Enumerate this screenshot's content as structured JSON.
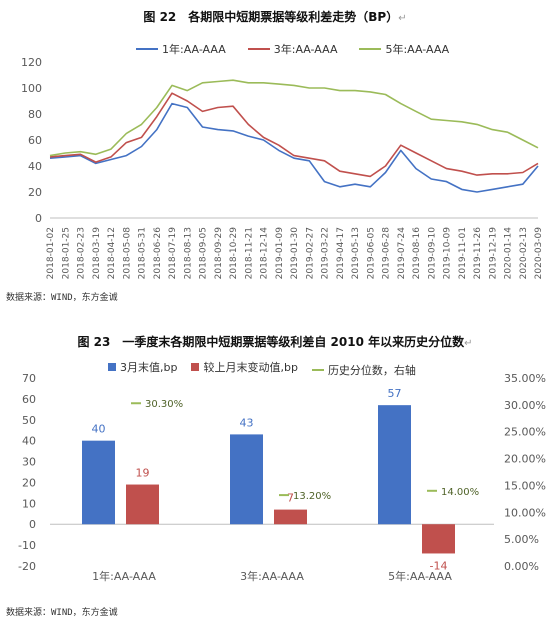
{
  "colors": {
    "series_1y": "#4472C4",
    "series_3y": "#C0504D",
    "series_5y": "#9BBB59",
    "bar_value": "#4472C4",
    "bar_change": "#C0504D",
    "percentile": "#9BBB59",
    "axis_text": "#595959"
  },
  "figure22": {
    "title": "图 22　各期限中短期票据等级利差走势（BP）",
    "source": "数据来源：WIND，东方金诚",
    "chart_data": {
      "type": "line",
      "title": "图 22　各期限中短期票据等级利差走势（BP）",
      "ylim": [
        0,
        120
      ],
      "yticks": [
        0,
        20,
        40,
        60,
        80,
        100,
        120
      ],
      "legend_position": "top",
      "grid": false,
      "x_tick_labels": [
        "2018-01-02",
        "2018-01-25",
        "2018-02-23",
        "2018-03-19",
        "2018-04-12",
        "2018-05-08",
        "2018-05-31",
        "2018-06-26",
        "2018-07-19",
        "2018-08-13",
        "2018-09-05",
        "2018-09-29",
        "2018-10-29",
        "2018-11-21",
        "2018-12-14",
        "2019-01-09",
        "2019-01-30",
        "2019-02-27",
        "2019-03-22",
        "2019-04-17",
        "2019-05-13",
        "2019-06-05",
        "2019-06-28",
        "2019-07-24",
        "2019-08-16",
        "2019-09-10",
        "2019-10-09",
        "2019-11-01",
        "2019-11-26",
        "2019-12-19",
        "2020-01-14",
        "2020-02-13",
        "2020-03-09"
      ],
      "series": [
        {
          "name": "1年:AA-AAA",
          "values": [
            46,
            47,
            48,
            42,
            45,
            48,
            55,
            68,
            88,
            85,
            70,
            68,
            67,
            63,
            60,
            52,
            46,
            44,
            28,
            24,
            26,
            24,
            35,
            52,
            38,
            30,
            28,
            22,
            20,
            22,
            24,
            26,
            40
          ]
        },
        {
          "name": "3年:AA-AAA",
          "values": [
            47,
            48,
            49,
            43,
            47,
            58,
            62,
            78,
            96,
            90,
            82,
            85,
            86,
            72,
            62,
            56,
            48,
            46,
            44,
            36,
            34,
            32,
            40,
            56,
            50,
            44,
            38,
            36,
            33,
            34,
            34,
            35,
            42
          ]
        },
        {
          "name": "5年:AA-AAA",
          "values": [
            48,
            50,
            51,
            49,
            53,
            65,
            72,
            85,
            102,
            98,
            104,
            105,
            106,
            104,
            104,
            103,
            102,
            100,
            100,
            98,
            98,
            97,
            95,
            88,
            82,
            76,
            75,
            74,
            72,
            68,
            66,
            60,
            54
          ]
        }
      ]
    }
  },
  "figure23": {
    "title": "图 23　一季度末各期限中短期票据等级利差自 2010 年以来历史分位数",
    "source": "数据来源：WIND，东方金诚",
    "chart_data": {
      "type": "bar",
      "title": "图 23　一季度末各期限中短期票据等级利差自 2010 年以来历史分位数",
      "categories": [
        "1年:AA-AAA",
        "3年:AA-AAA",
        "5年:AA-AAA"
      ],
      "series": [
        {
          "name": "3月末值,bp",
          "axis": "left",
          "values": [
            40,
            43,
            57
          ],
          "labels": [
            "40",
            "43",
            "57"
          ]
        },
        {
          "name": "较上月末变动值,bp",
          "axis": "left",
          "values": [
            19,
            7,
            -14
          ],
          "labels": [
            "19",
            "7",
            "-14"
          ]
        },
        {
          "name": "历史分位数，右轴",
          "axis": "right",
          "values": [
            0.303,
            0.132,
            0.14
          ],
          "labels": [
            "30.30%",
            "13.20%",
            "14.00%"
          ]
        }
      ],
      "ylim": [
        -20,
        70
      ],
      "yticks": [
        -20,
        -10,
        0,
        10,
        20,
        30,
        40,
        50,
        60,
        70
      ],
      "y2lim": [
        0,
        0.35
      ],
      "y2ticks": [
        "0.00%",
        "5.00%",
        "10.00%",
        "15.00%",
        "20.00%",
        "25.00%",
        "30.00%",
        "35.00%"
      ],
      "legend_position": "top",
      "grid": false
    }
  }
}
